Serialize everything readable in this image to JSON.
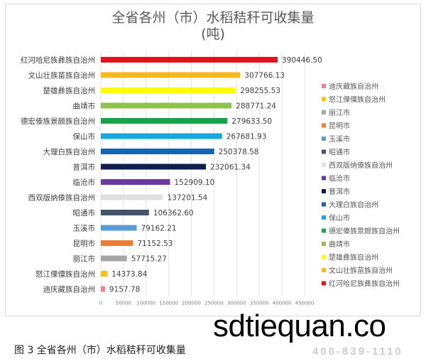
{
  "chart_data": {
    "type": "bar",
    "orientation": "horizontal",
    "title": "全省各州（市）水稻秸秆可收集量",
    "subtitle": "(吨)",
    "caption": "图 3 全省各州（市）水稻秸秆可收集量",
    "categories": [
      "红河哈尼族彝族自治州",
      "文山壮族苗族自治州",
      "楚雄彝族自治州",
      "曲靖市",
      "德宏傣族景颇族自治州",
      "保山市",
      "大理白族自治州",
      "普洱市",
      "临沧市",
      "西双版纳傣族自治州",
      "昭通市",
      "玉溪市",
      "昆明市",
      "丽江市",
      "怒江傈僳族自治州",
      "迪庆藏族自治州"
    ],
    "values": [
      390446.5,
      307766.13,
      298255.53,
      288771.24,
      279633.5,
      267681.93,
      250378.58,
      232061.34,
      152909.1,
      137201.54,
      106362.6,
      79162.21,
      71152.53,
      57715.27,
      14373.84,
      9157.78
    ],
    "labels": [
      "390446.50",
      "307766.13",
      "298255.53",
      "288771.24",
      "279633.50",
      "267681.93",
      "250378.58",
      "232061.34",
      "152909.10",
      "137201.54",
      "106362.60",
      "79162.21",
      "71152.53",
      "57715.27",
      "14373.84",
      "9157.78"
    ],
    "colors": [
      "#e8101a",
      "#f5b91c",
      "#ffff00",
      "#8dc34a",
      "#1aa34a",
      "#1aa6e0",
      "#1565b5",
      "#0d1f4f",
      "#6b3aa0",
      "#e0e0e0",
      "#44546a",
      "#5b9bd5",
      "#ed7d31",
      "#a5a5a5",
      "#ffc000",
      "#f08090"
    ],
    "xlim": [
      0,
      450000
    ],
    "xticks": [
      "0",
      "50000",
      "100000",
      "150000",
      "200000",
      "250000",
      "300000",
      "350000",
      "400000",
      "450000"
    ],
    "grid": true,
    "legend_placement": "right",
    "legend_order": "reversed"
  },
  "watermark": {
    "text": "sdtiequan.co",
    "phone": "400-839-1110"
  }
}
